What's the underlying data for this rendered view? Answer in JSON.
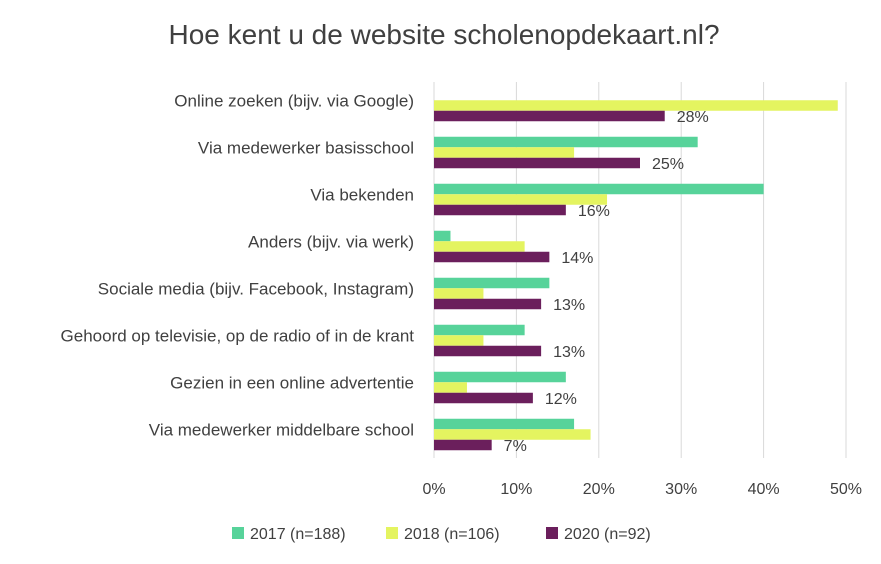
{
  "chart_data": {
    "type": "bar",
    "orientation": "horizontal",
    "title": "Hoe kent u de website scholenopdekaart.nl?",
    "categories": [
      "Online zoeken (bijv. via Google)",
      "Via medewerker basisschool",
      "Via bekenden",
      "Anders (bijv. via werk)",
      "Sociale media (bijv. Facebook, Instagram)",
      "Gehoord op televisie, op de radio of in de krant",
      "Gezien in een online advertentie",
      "Via medewerker middelbare school"
    ],
    "series": [
      {
        "name": "2017 (n=188)",
        "color": "#57d39a",
        "values": [
          0,
          32,
          40,
          2,
          14,
          11,
          16,
          17
        ]
      },
      {
        "name": "2018 (n=106)",
        "color": "#e4f460",
        "values": [
          49,
          17,
          21,
          11,
          6,
          6,
          4,
          19
        ]
      },
      {
        "name": "2020 (n=92)",
        "color": "#6b1f5c",
        "values": [
          28,
          25,
          16,
          14,
          13,
          13,
          12,
          7
        ]
      }
    ],
    "data_labels": [
      "28%",
      "25%",
      "16%",
      "14%",
      "13%",
      "13%",
      "12%",
      "7%"
    ],
    "xlim": [
      0,
      50
    ],
    "xticks": [
      "0%",
      "10%",
      "20%",
      "30%",
      "40%",
      "50%"
    ],
    "grid": true,
    "legend": "bottom"
  }
}
